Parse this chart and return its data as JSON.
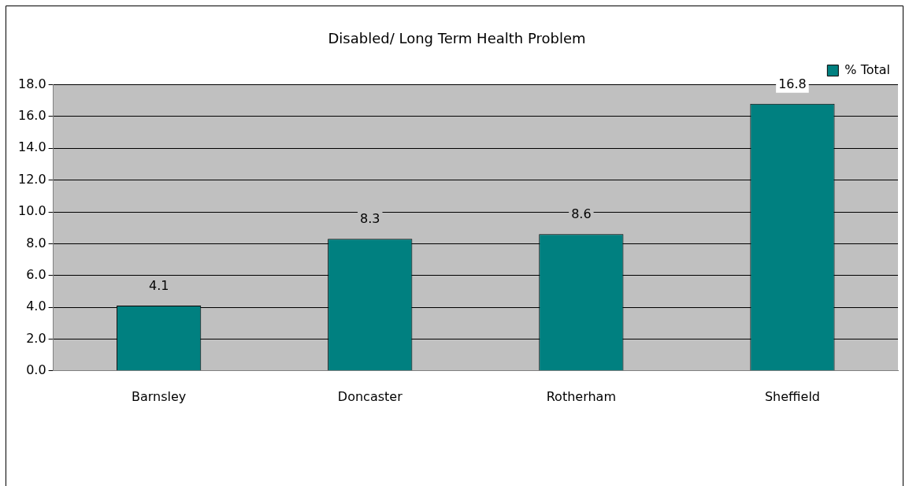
{
  "chart_data": {
    "type": "bar",
    "title": "Disabled/ Long Term Health Problem",
    "categories": [
      "Barnsley",
      "Doncaster",
      "Rotherham",
      "Sheffield"
    ],
    "series": [
      {
        "name": "% Total",
        "color": "#008080",
        "values": [
          4.1,
          8.3,
          8.6,
          16.8
        ]
      }
    ],
    "ylim": [
      0,
      18
    ],
    "yticks": [
      {
        "value": 0,
        "label": "0.0"
      },
      {
        "value": 2,
        "label": "2.0"
      },
      {
        "value": 4,
        "label": "4.0"
      },
      {
        "value": 6,
        "label": "6.0"
      },
      {
        "value": 8,
        "label": "8.0"
      },
      {
        "value": 10,
        "label": "10.0"
      },
      {
        "value": 12,
        "label": "12.0"
      },
      {
        "value": 14,
        "label": "14.0"
      },
      {
        "value": 16,
        "label": "16.0"
      },
      {
        "value": 18,
        "label": "18.0"
      }
    ],
    "grid": "y",
    "legend": "top right",
    "data_labels": true
  }
}
